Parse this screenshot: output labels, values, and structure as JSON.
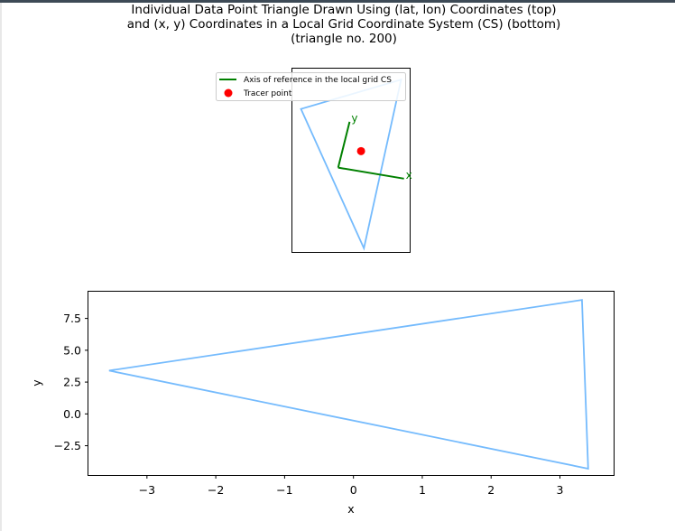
{
  "title_lines": [
    "Individual Data Point Triangle Drawn Using (lat, lon) Coordinates (top)",
    "and (x, y) Coordinates in a Local Grid Coordinate System (CS) (bottom)",
    "(triangle no. 200)"
  ],
  "chart_data": [
    {
      "type": "line",
      "panel": "top",
      "series": [
        {
          "name": "triangle",
          "color": "#75bbfd",
          "closed": true,
          "points": [
            [
              0.08,
              0.88
            ],
            [
              -0.62,
              0.56
            ],
            [
              -0.18,
              -0.96
            ]
          ]
        }
      ],
      "reference_axes": {
        "name": "Axis of reference in the local grid CS",
        "color": "#008000",
        "origin": [
          -0.36,
          -0.08
        ],
        "x_end": [
          0.1,
          -0.2
        ],
        "y_end": [
          -0.28,
          0.42
        ],
        "x_label": "x",
        "y_label": "y"
      },
      "tracer_point": {
        "name": "Tracer point",
        "color": "#ff0000",
        "point": [
          -0.2,
          0.1
        ]
      },
      "xlim": [
        -0.68,
        0.14
      ],
      "ylim": [
        -1.0,
        1.0
      ],
      "grid": false,
      "legend_location": "upper-left",
      "legend": [
        {
          "label": "Axis of reference in the local grid CS",
          "kind": "line",
          "color": "#008000"
        },
        {
          "label": "Tracer point",
          "kind": "marker",
          "color": "#ff0000"
        }
      ]
    },
    {
      "type": "line",
      "panel": "bottom",
      "series": [
        {
          "name": "triangle",
          "color": "#75bbfd",
          "closed": true,
          "points": [
            [
              -3.55,
              3.4
            ],
            [
              3.32,
              8.95
            ],
            [
              3.41,
              -4.3
            ]
          ]
        }
      ],
      "xlim": [
        -3.85,
        3.78
      ],
      "ylim": [
        -4.8,
        9.6
      ],
      "xticks": [
        -3,
        -2,
        -1,
        0,
        1,
        2,
        3
      ],
      "xtick_labels": [
        "−3",
        "−2",
        "−1",
        "0",
        "1",
        "2",
        "3"
      ],
      "yticks": [
        -2.5,
        0.0,
        2.5,
        5.0,
        7.5
      ],
      "ytick_labels": [
        "−2.5",
        "0.0",
        "2.5",
        "5.0",
        "7.5"
      ],
      "xlabel": "x",
      "ylabel": "y",
      "grid": false
    }
  ]
}
